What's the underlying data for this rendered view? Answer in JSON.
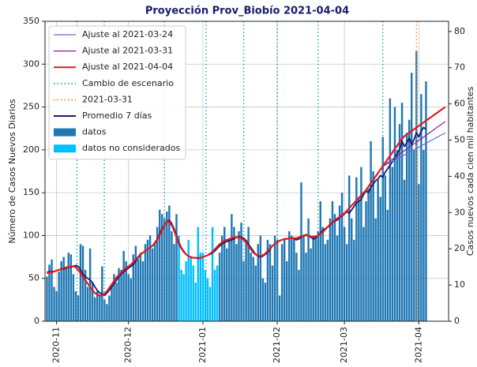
{
  "chart_data": {
    "type": "combo",
    "title": "Proyección Prov_Biobío 2021-04-04",
    "ylabel": "Número de Casos Nuevos Diarios",
    "y2label": "Casos nuevos cada cien mil habitantes",
    "xlim": [
      -0.8,
      167.4
    ],
    "xticks": [
      {
        "value": 4,
        "label": "2020-11"
      },
      {
        "value": 34,
        "label": "2020-12"
      },
      {
        "value": 65,
        "label": "2021-01"
      },
      {
        "value": 96,
        "label": "2021-02"
      },
      {
        "value": 124,
        "label": "2021-03"
      },
      {
        "value": 155,
        "label": "2021-04"
      }
    ],
    "ylim": [
      0,
      350
    ],
    "yticks": [
      0,
      50,
      100,
      150,
      200,
      250,
      300,
      350
    ],
    "y2lim": [
      0,
      82.8
    ],
    "y2ticks": [
      0,
      10,
      20,
      30,
      40,
      50,
      60,
      70,
      80
    ],
    "grid": true,
    "legend": "upper left",
    "series": [
      {
        "name": "Ajuste al 2021-03-24",
        "type": "line",
        "color": "#6a6ad8",
        "values": [
          null,
          null,
          null,
          null,
          null,
          null,
          null,
          null,
          null,
          null,
          null,
          null,
          null,
          null,
          null,
          null,
          null,
          null,
          null,
          null,
          null,
          null,
          null,
          null,
          null,
          null,
          null,
          null,
          null,
          null,
          null,
          null,
          null,
          null,
          null,
          null,
          null,
          null,
          null,
          null,
          null,
          null,
          null,
          null,
          null,
          null,
          null,
          null,
          null,
          null,
          null,
          null,
          null,
          null,
          null,
          null,
          null,
          null,
          null,
          null,
          null,
          null,
          null,
          null,
          null,
          null,
          null,
          null,
          null,
          null,
          null,
          null,
          null,
          null,
          null,
          null,
          null,
          null,
          null,
          null,
          null,
          null,
          null,
          null,
          null,
          null,
          null,
          null,
          null,
          null,
          null,
          null,
          null,
          null,
          null,
          null,
          null,
          null,
          null,
          null,
          null,
          null,
          null,
          null,
          null,
          null,
          null,
          null,
          null,
          null,
          null,
          null,
          null,
          null,
          null,
          null,
          null,
          null,
          null,
          null,
          null,
          null,
          null,
          null,
          null,
          null,
          null,
          null,
          null,
          null,
          null,
          null,
          null,
          null,
          null,
          null,
          null,
          null,
          null,
          null,
          181,
          182,
          184,
          185,
          187,
          188,
          190,
          191,
          193,
          194,
          196,
          197,
          199,
          200,
          202,
          203,
          205,
          206,
          208,
          209,
          211,
          212,
          214,
          215,
          217,
          218,
          220
        ]
      },
      {
        "name": "Ajuste al 2021-03-31",
        "type": "line",
        "color": "#8b1a8b",
        "values": [
          null,
          null,
          null,
          null,
          null,
          null,
          null,
          null,
          null,
          null,
          null,
          null,
          null,
          null,
          null,
          null,
          null,
          null,
          null,
          null,
          null,
          null,
          null,
          null,
          null,
          null,
          null,
          null,
          null,
          null,
          null,
          null,
          null,
          null,
          null,
          null,
          null,
          null,
          null,
          null,
          null,
          null,
          null,
          null,
          null,
          null,
          null,
          null,
          null,
          null,
          null,
          null,
          null,
          null,
          null,
          null,
          null,
          null,
          null,
          null,
          null,
          null,
          null,
          null,
          null,
          null,
          null,
          null,
          null,
          null,
          null,
          null,
          null,
          null,
          null,
          null,
          null,
          null,
          null,
          null,
          null,
          null,
          null,
          null,
          null,
          null,
          null,
          null,
          null,
          null,
          null,
          null,
          null,
          null,
          null,
          null,
          null,
          null,
          null,
          null,
          null,
          null,
          null,
          null,
          null,
          null,
          null,
          null,
          null,
          null,
          null,
          null,
          null,
          null,
          null,
          null,
          null,
          null,
          null,
          null,
          null,
          null,
          null,
          null,
          null,
          null,
          null,
          null,
          null,
          null,
          null,
          null,
          null,
          null,
          null,
          null,
          null,
          null,
          null,
          null,
          181,
          183,
          185,
          187,
          189,
          191,
          193,
          195,
          197,
          199,
          201,
          203,
          205,
          207,
          209,
          211,
          213,
          215,
          217,
          219,
          221,
          223,
          225,
          227,
          229,
          231,
          233
        ]
      },
      {
        "name": "Ajuste al 2021-04-04",
        "type": "line",
        "color": "#e41a1c",
        "values": [
          56,
          57,
          57,
          58,
          59,
          60,
          61,
          62,
          63,
          63,
          64,
          64,
          63,
          60,
          56,
          52,
          48,
          44,
          40,
          36,
          33,
          31,
          30,
          30,
          32,
          35,
          39,
          43,
          47,
          51,
          54,
          57,
          60,
          62,
          64,
          66,
          69,
          72,
          75,
          78,
          80,
          82,
          84,
          86,
          88,
          91,
          95,
          100,
          106,
          112,
          116,
          116,
          112,
          106,
          98,
          90,
          85,
          81,
          78,
          76,
          75,
          74,
          74,
          74,
          74,
          75,
          76,
          77,
          79,
          81,
          84,
          87,
          90,
          92,
          94,
          95,
          96,
          97,
          98,
          98,
          98,
          97,
          95,
          92,
          88,
          84,
          80,
          78,
          77,
          76,
          77,
          79,
          82,
          85,
          88,
          90,
          92,
          94,
          95,
          96,
          96,
          97,
          97,
          97,
          97,
          98,
          99,
          100,
          100,
          100,
          99,
          98,
          99,
          100,
          102,
          104,
          107,
          110,
          113,
          116,
          118,
          120,
          122,
          124,
          126,
          129,
          132,
          135,
          138,
          141,
          144,
          147,
          150,
          153,
          157,
          161,
          165,
          169,
          173,
          177,
          181,
          185,
          189,
          193,
          197,
          201,
          205,
          209,
          213,
          216,
          218,
          220,
          222,
          224,
          226,
          228,
          230,
          232,
          234,
          236,
          238,
          240,
          242,
          244,
          246,
          248,
          250
        ]
      },
      {
        "name": "Cambio de escenario",
        "type": "vline",
        "color": "#17a2b8",
        "x": [
          12.5,
          23.9,
          49,
          66.3,
          82,
          96,
          113,
          140
        ]
      },
      {
        "name": "2021-03-31",
        "type": "vline",
        "color": "#ff7f0e",
        "x": [
          154
        ]
      },
      {
        "name": "Promedio 7 días",
        "type": "line",
        "color": "#1a1a6e",
        "values": [
          57,
          58,
          58,
          58,
          59,
          60,
          61,
          61,
          62,
          63,
          63,
          64,
          65,
          64,
          60,
          55,
          52,
          50,
          48,
          45,
          40,
          36,
          33,
          32,
          30,
          33,
          36,
          40,
          44,
          48,
          52,
          55,
          58,
          60,
          62,
          64,
          66,
          70,
          74,
          78,
          80,
          82,
          84,
          86,
          88,
          92,
          96,
          102,
          108,
          112,
          116,
          118,
          114,
          108,
          100,
          92,
          86,
          82,
          78,
          76,
          75,
          74,
          74,
          73,
          74,
          75,
          76,
          77,
          78,
          80,
          82,
          85,
          88,
          90,
          92,
          93,
          94,
          95,
          96,
          98,
          99,
          98,
          97,
          94,
          90,
          86,
          82,
          78,
          76,
          75,
          76,
          78,
          80,
          84,
          88,
          90,
          92,
          94,
          95,
          96,
          96,
          97,
          97,
          96,
          95,
          96,
          98,
          100,
          101,
          100,
          98,
          96,
          97,
          100,
          103,
          106,
          108,
          110,
          112,
          115,
          117,
          118,
          121,
          123,
          125,
          128,
          126,
          130,
          134,
          138,
          140,
          142,
          148,
          152,
          150,
          156,
          160,
          164,
          166,
          170,
          168,
          174,
          178,
          182,
          186,
          190,
          196,
          200,
          210,
          204,
          208,
          214,
          206,
          212,
          220,
          215,
          222,
          226,
          224,
          null,
          null,
          null,
          null,
          null,
          null,
          null,
          null
        ]
      },
      {
        "name": "datos",
        "type": "bar",
        "color": "#1f77b4",
        "values": [
          52,
          66,
          72,
          40,
          35,
          58,
          70,
          75,
          62,
          80,
          78,
          55,
          35,
          30,
          90,
          88,
          60,
          40,
          85,
          45,
          28,
          35,
          30,
          64,
          25,
          20,
          30,
          40,
          55,
          45,
          62,
          60,
          82,
          70,
          55,
          50,
          78,
          88,
          72,
          80,
          70,
          90,
          95,
          100,
          85,
          92,
          110,
          130,
          125,
          120,
          128,
          135,
          105,
          90,
          125,
          null,
          null,
          null,
          null,
          null,
          null,
          null,
          null,
          null,
          null,
          null,
          null,
          null,
          null,
          null,
          null,
          null,
          80,
          100,
          110,
          85,
          95,
          125,
          110,
          90,
          105,
          115,
          70,
          95,
          110,
          80,
          75,
          65,
          90,
          100,
          50,
          45,
          95,
          90,
          65,
          100,
          95,
          30,
          90,
          95,
          70,
          105,
          100,
          95,
          80,
          60,
          162,
          100,
          80,
          120,
          85,
          100,
          100,
          105,
          140,
          110,
          90,
          95,
          120,
          140,
          125,
          100,
          135,
          150,
          110,
          90,
          170,
          120,
          95,
          168,
          145,
          180,
          110,
          140,
          155,
          210,
          175,
          120,
          165,
          145,
          215,
          170,
          130,
          260,
          180,
          250,
          200,
          230,
          255,
          165,
          220,
          235,
          290,
          200,
          315,
          160,
          265,
          200,
          280,
          null,
          null,
          null,
          null,
          null,
          null,
          null,
          null
        ]
      },
      {
        "name": "datos no considerados",
        "type": "bar",
        "color": "#00bfff",
        "values": [
          null,
          null,
          null,
          null,
          null,
          null,
          null,
          null,
          null,
          null,
          null,
          null,
          null,
          null,
          null,
          null,
          null,
          null,
          null,
          null,
          null,
          null,
          null,
          null,
          null,
          null,
          null,
          null,
          null,
          null,
          null,
          null,
          null,
          null,
          null,
          null,
          null,
          null,
          null,
          null,
          null,
          null,
          null,
          null,
          null,
          null,
          null,
          null,
          null,
          null,
          null,
          null,
          null,
          null,
          null,
          100,
          60,
          55,
          70,
          95,
          75,
          65,
          45,
          110,
          80,
          80,
          60,
          50,
          40,
          110,
          60,
          65,
          null,
          null,
          null,
          null,
          null,
          null,
          null,
          null,
          null,
          null,
          null,
          null,
          null,
          null,
          null,
          null,
          null,
          null,
          null,
          null,
          null,
          null,
          null,
          null,
          null,
          null,
          null,
          null,
          null,
          null,
          null,
          null,
          null,
          null,
          null,
          null,
          null,
          null,
          null,
          null,
          null,
          null,
          null,
          null,
          null,
          null,
          null,
          null,
          null,
          null,
          null,
          null,
          null,
          null,
          null,
          null,
          null,
          null,
          null,
          null,
          null,
          null,
          null,
          null,
          null,
          null,
          null,
          null,
          null,
          null,
          null,
          null,
          null,
          null,
          null,
          null,
          null,
          null,
          null,
          null,
          null,
          null,
          null,
          null,
          null,
          null,
          null,
          null,
          null,
          null,
          null,
          null,
          null,
          null,
          null
        ]
      }
    ]
  }
}
